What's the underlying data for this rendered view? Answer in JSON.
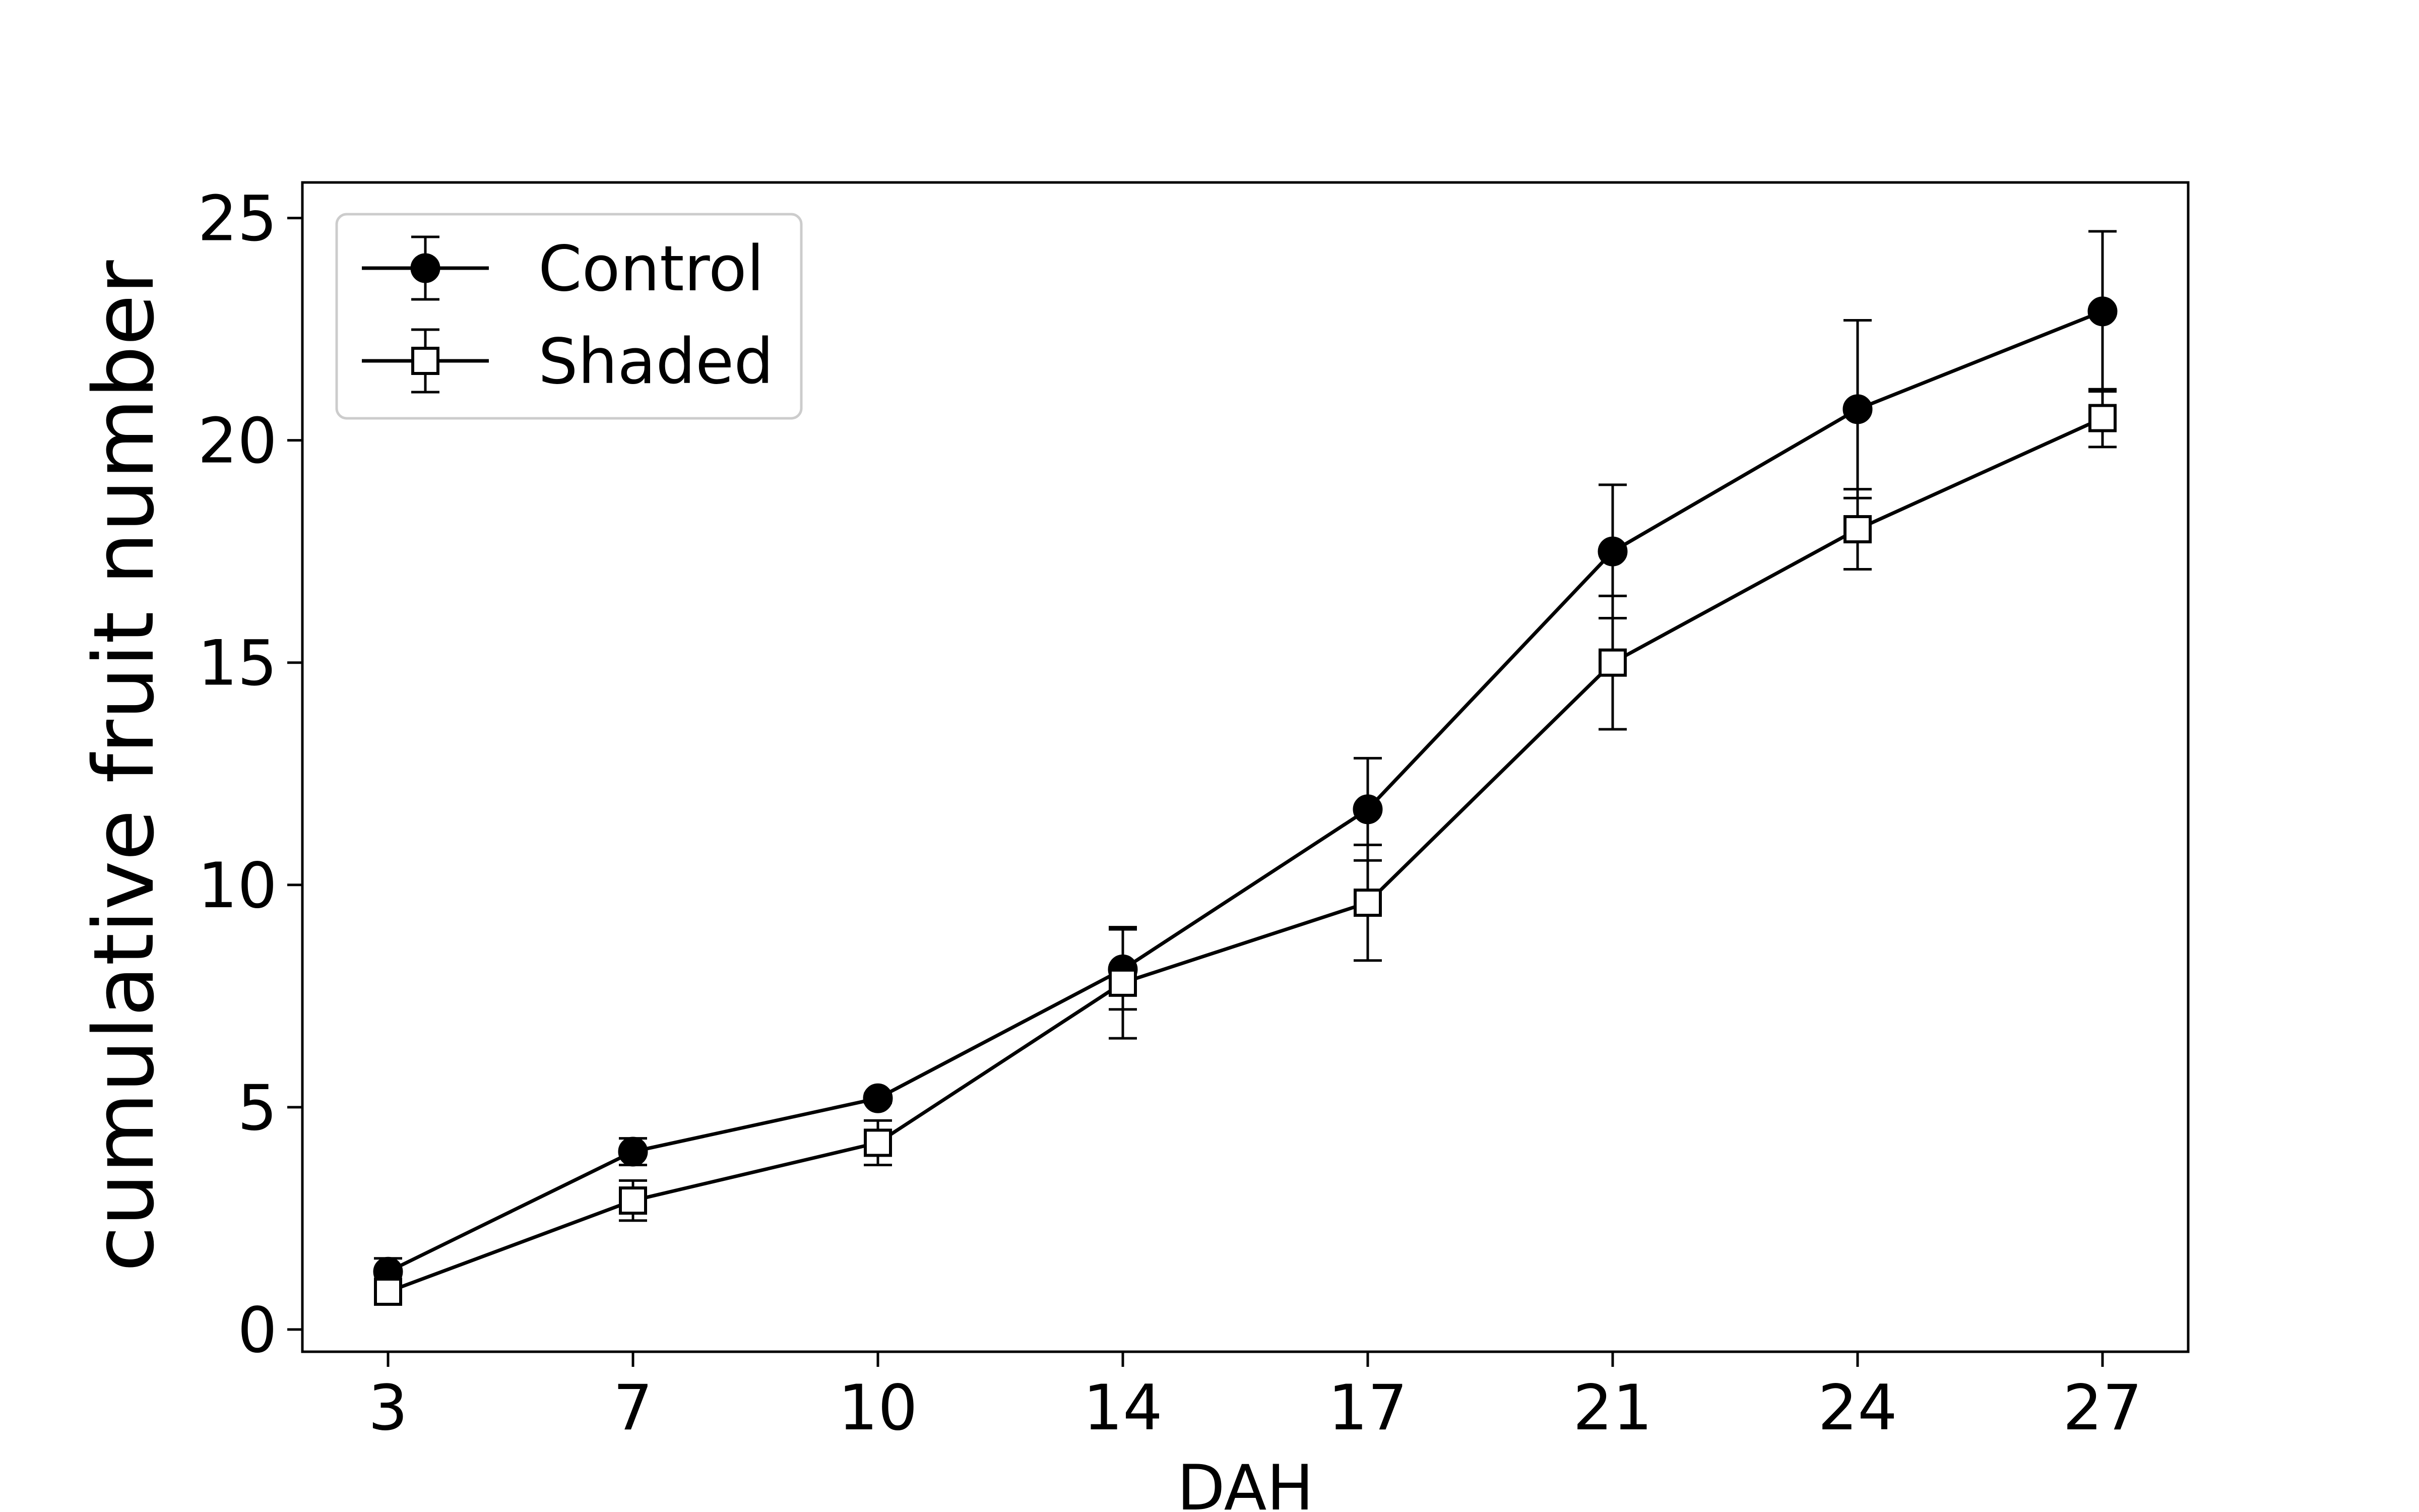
{
  "chart_data": {
    "type": "line",
    "title": "",
    "xlabel": "DAH",
    "ylabel": "cumulative fruit number",
    "x": [
      3,
      7,
      10,
      14,
      17,
      21,
      24,
      27
    ],
    "x_ticks": [
      "3",
      "7",
      "10",
      "14",
      "17",
      "21",
      "24",
      "27"
    ],
    "y_ticks": [
      0,
      5,
      10,
      15,
      20,
      25
    ],
    "ylim": [
      -0.5,
      25.8
    ],
    "grid": false,
    "legend_position": "top-left",
    "series": [
      {
        "name": "Control",
        "marker": "filled-circle",
        "color": "#000000",
        "values": [
          1.3,
          4.0,
          5.2,
          8.1,
          11.7,
          17.5,
          20.7,
          22.9
        ],
        "errors": [
          0.3,
          0.3,
          0.1,
          0.9,
          1.15,
          1.5,
          2.0,
          1.8
        ]
      },
      {
        "name": "Shaded",
        "marker": "open-square",
        "color": "#000000",
        "values": [
          0.85,
          2.9,
          4.2,
          7.8,
          9.6,
          15.0,
          18.0,
          20.5
        ],
        "errors": [
          0.2,
          0.45,
          0.5,
          1.25,
          1.3,
          1.5,
          0.9,
          0.65
        ]
      }
    ]
  }
}
